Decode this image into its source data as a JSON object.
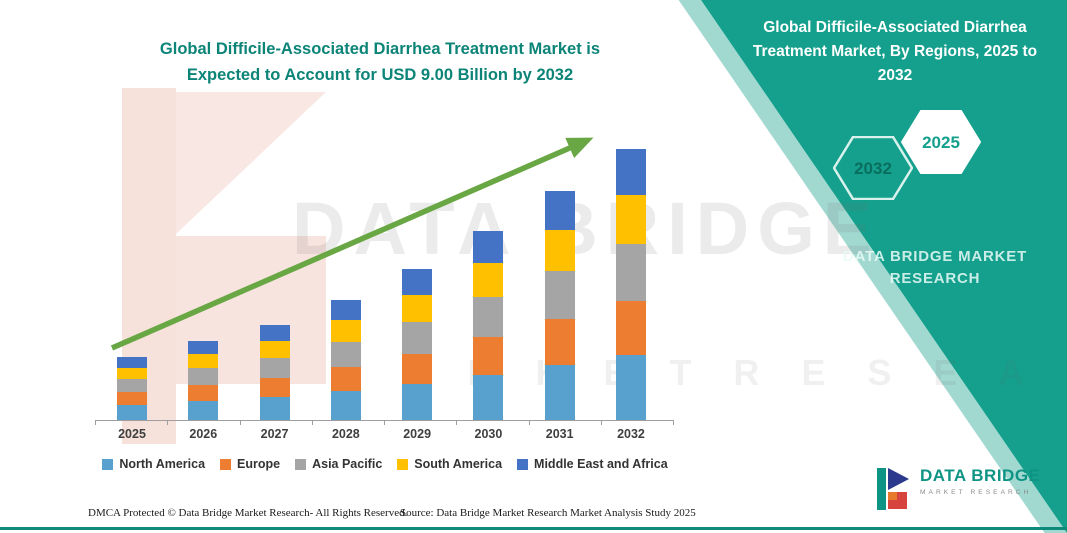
{
  "main": {
    "title_line1": "Global Difficile-Associated Diarrhea Treatment Market is",
    "title_line2": "Expected to Account for USD 9.00 Billion by 2032"
  },
  "side": {
    "heading": "Global Difficile-Associated Diarrhea Treatment Market, By Regions, 2025 to 2032",
    "hexagons": [
      "2032",
      "2025"
    ],
    "brand_line1": "DATA BRIDGE MARKET",
    "brand_line2": "RESEARCH",
    "panel_color": "#14a08d"
  },
  "watermark": {
    "line1": "DATA BRIDGE",
    "line2": "M A R K E T   R E S E A R C H"
  },
  "chart_data": {
    "type": "bar",
    "stacked": true,
    "title": "Global Difficile-Associated Diarrhea Treatment Market is Expected to Account for USD 9.00 Billion by 2032",
    "unit": "USD Billion",
    "categories": [
      "2025",
      "2026",
      "2027",
      "2028",
      "2029",
      "2030",
      "2031",
      "2032"
    ],
    "series": [
      {
        "name": "North America",
        "color": "#58a0cd",
        "values": [
          0.5,
          0.62,
          0.77,
          0.96,
          1.2,
          1.51,
          1.82,
          2.16
        ]
      },
      {
        "name": "Europe",
        "color": "#ed7d31",
        "values": [
          0.42,
          0.52,
          0.64,
          0.8,
          1.0,
          1.26,
          1.52,
          1.8
        ]
      },
      {
        "name": "Asia Pacific",
        "color": "#a5a5a5",
        "values": [
          0.44,
          0.55,
          0.67,
          0.84,
          1.05,
          1.32,
          1.6,
          1.89
        ]
      },
      {
        "name": "South America",
        "color": "#ffc000",
        "values": [
          0.38,
          0.47,
          0.58,
          0.72,
          0.9,
          1.13,
          1.37,
          1.62
        ]
      },
      {
        "name": "Middle East and Africa",
        "color": "#4472c4",
        "values": [
          0.36,
          0.44,
          0.54,
          0.68,
          0.85,
          1.07,
          1.29,
          1.53
        ]
      }
    ],
    "totals": [
      2.1,
      2.6,
      3.2,
      4.0,
      5.0,
      6.29,
      7.6,
      9.0
    ],
    "ylim": [
      0,
      9.5
    ],
    "grid": false,
    "legend_position": "bottom",
    "arrow_color": "#69a744",
    "highlight_value_2032": "USD 9.00 Billion"
  },
  "footer": {
    "dmca": "DMCA Protected © Data Bridge Market Research-  All Rights Reserved.",
    "source": "Source: Data Bridge Market Research  Market Analysis Study 2025"
  },
  "logo": {
    "name": "DATA BRIDGE",
    "tagline": "MARKET RESEARCH"
  }
}
